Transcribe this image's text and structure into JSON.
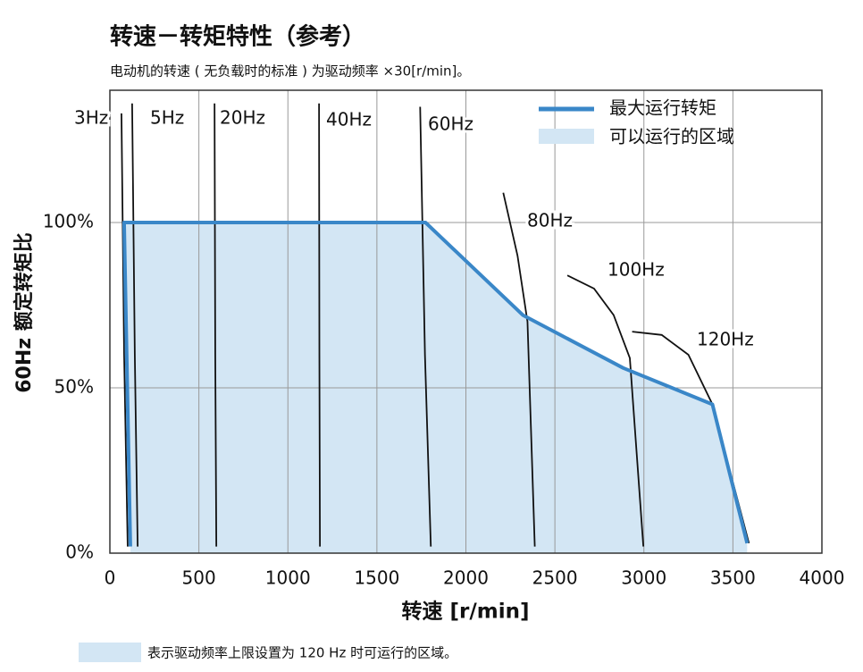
{
  "chart_data": {
    "type": "line",
    "title": "转速－转矩特性（参考）",
    "subtitle": "电动机的转速 ( 无负载时的标准 ) 为驱动频率 ×30[r/min]。",
    "xlabel": "转速 [r/min]",
    "ylabel": "60Hz 额定转矩比",
    "xlim": [
      0,
      4000
    ],
    "xticks": [
      0,
      500,
      1000,
      1500,
      2000,
      2500,
      3000,
      3500,
      4000
    ],
    "ylim": [
      0,
      140
    ],
    "yticks": [
      {
        "value": 0,
        "label": "0%"
      },
      {
        "value": 50,
        "label": "50%"
      },
      {
        "value": 100,
        "label": "100%"
      }
    ],
    "grid": true,
    "series": [
      {
        "name": "最大运行转矩",
        "color": "#3a87c8",
        "x": [
          115,
          80,
          1773,
          2320,
          2884,
          3385,
          3580
        ],
        "values": [
          2,
          100,
          100,
          72,
          56,
          45,
          3
        ],
        "fill": {
          "name": "可以运行的区域",
          "color": "#d3e6f4"
        }
      }
    ],
    "curves": [
      {
        "label": "3Hz",
        "x": [
          65,
          80,
          100
        ],
        "values": [
          133,
          60,
          2
        ]
      },
      {
        "label": "5Hz",
        "x": [
          125,
          140,
          156
        ],
        "values": [
          136,
          60,
          2
        ]
      },
      {
        "label": "20Hz",
        "x": [
          588,
          592,
          598
        ],
        "values": [
          136,
          60,
          2
        ]
      },
      {
        "label": "40Hz",
        "x": [
          1175,
          1177,
          1180
        ],
        "values": [
          136,
          60,
          2
        ]
      },
      {
        "label": "60Hz",
        "x": [
          1743,
          1770,
          1803
        ],
        "values": [
          135,
          60,
          2
        ]
      },
      {
        "label": "80Hz",
        "x": [
          2210,
          2290,
          2346,
          2387
        ],
        "values": [
          109,
          90,
          70,
          2
        ]
      },
      {
        "label": "100Hz",
        "x": [
          2570,
          2720,
          2830,
          2921,
          2997
        ],
        "values": [
          84,
          80,
          72,
          59,
          2
        ]
      },
      {
        "label": "120Hz",
        "x": [
          2934,
          3100,
          3250,
          3385,
          3590
        ],
        "values": [
          67,
          66,
          60,
          45,
          3
        ]
      }
    ],
    "footnote": "表示驱动频率上限设置为 120 Hz 时可运行的区域。"
  }
}
